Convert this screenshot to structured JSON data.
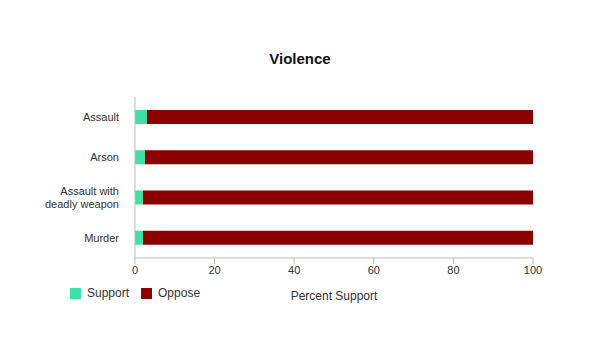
{
  "chart_data": {
    "type": "bar",
    "title": "Violence",
    "xlabel": "Percent Support",
    "orientation": "horizontal",
    "stacked": true,
    "grid": false,
    "legend": "bottom left",
    "categories": [
      "Assault",
      "Arson",
      "Assault with deadly weapon",
      "Murder"
    ],
    "series": [
      {
        "name": "Support",
        "color": "#3ee0a6",
        "values": [
          3,
          2.5,
          2,
          2
        ]
      },
      {
        "name": "Oppose",
        "color": "#8b0000",
        "values": [
          97,
          97.5,
          98,
          98
        ]
      }
    ],
    "xlim": [
      0,
      100
    ],
    "xticks": [
      0,
      20,
      40,
      60,
      80,
      100
    ]
  }
}
